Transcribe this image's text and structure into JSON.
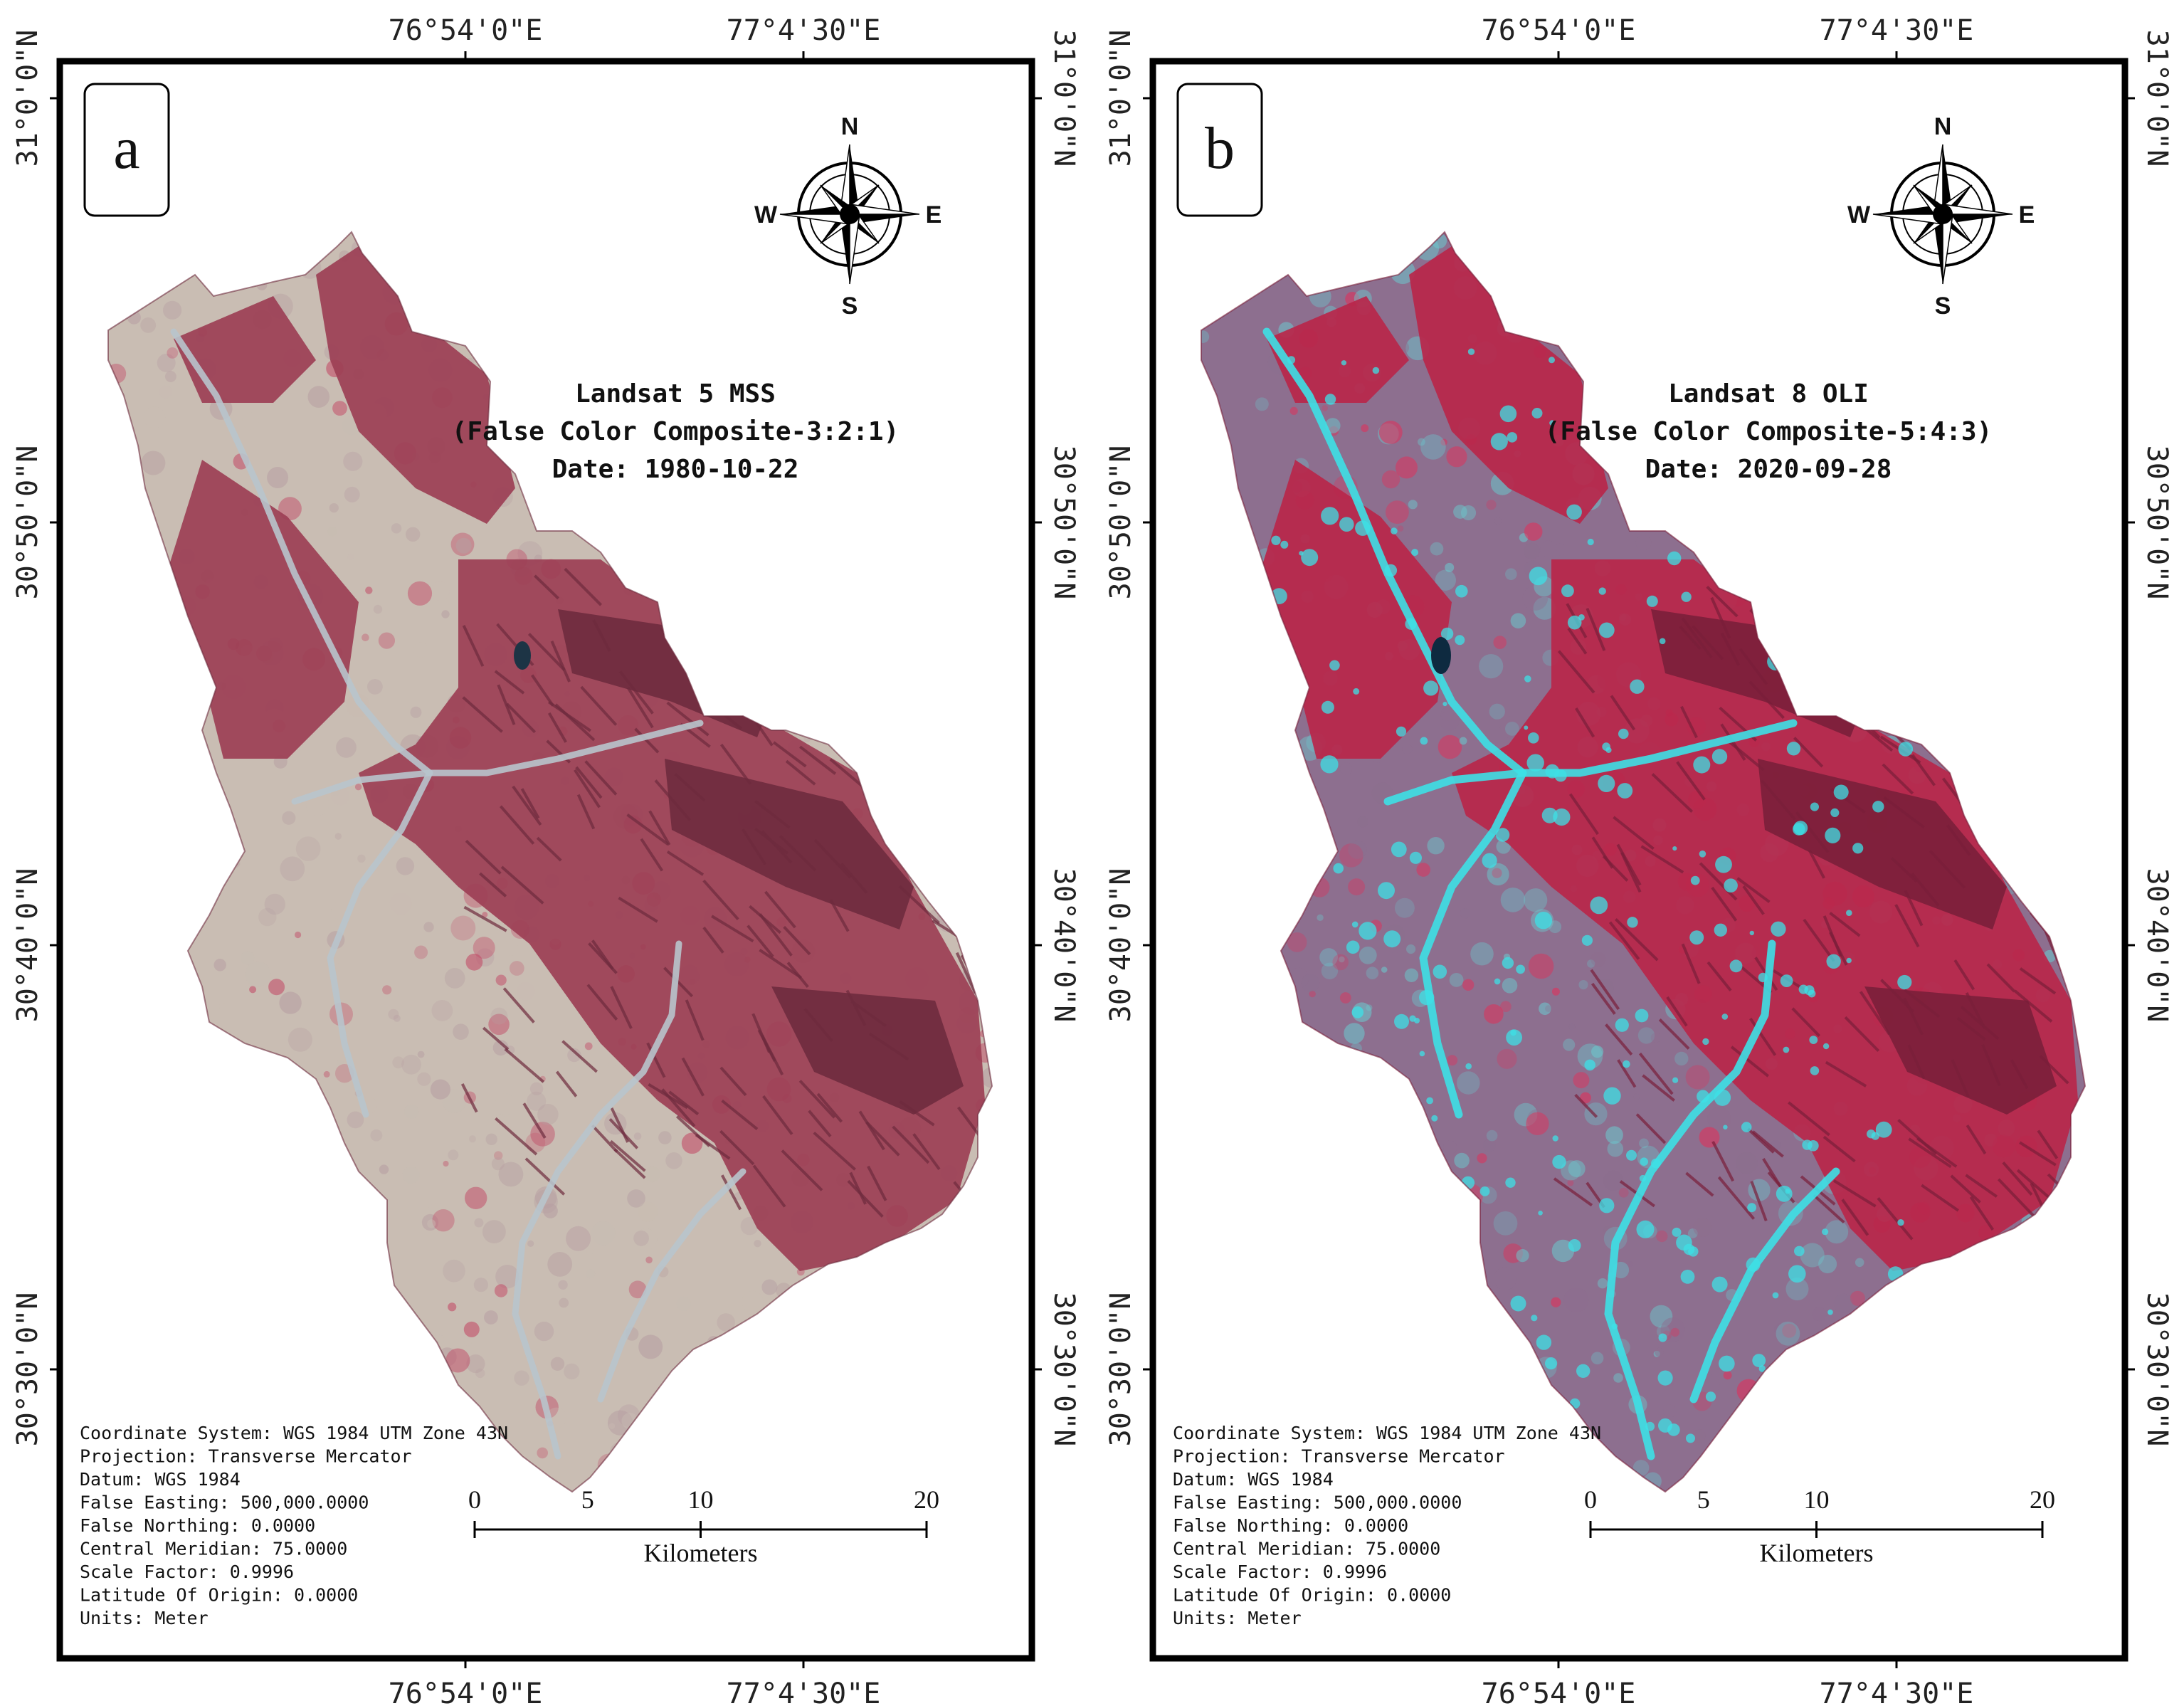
{
  "panels": [
    {
      "letter": "a",
      "title_lines": [
        "Landsat 5 MSS",
        "(False Color Composite-3:2:1)",
        "Date: 1980-10-22"
      ],
      "palette": {
        "mountain": "#9c3f55",
        "mountain_dark": "#6e2b3e",
        "plain": "#c9bdb3",
        "plain_alt": "#b79fa2",
        "river": "#b8c4cc",
        "accent": "#c24a66"
      }
    },
    {
      "letter": "b",
      "title_lines": [
        "Landsat 8 OLI",
        "(False Color Composite-5:4:3)",
        "Date: 2020-09-28"
      ],
      "palette": {
        "mountain": "#b8264a",
        "mountain_dark": "#7a1f3a",
        "plain": "#8d6f8f",
        "plain_alt": "#6cc6cc",
        "river": "#3de0e6",
        "accent": "#e0305a"
      }
    }
  ],
  "longitude_labels": [
    "76°54'0\"E",
    "77°4'30\"E"
  ],
  "latitude_labels": [
    "31°0'0\"N",
    "30°50'0\"N",
    "30°40'0\"N",
    "30°30'0\"N"
  ],
  "compass": {
    "n": "N",
    "s": "S",
    "e": "E",
    "w": "W"
  },
  "metadata_lines": [
    "Coordinate System: WGS 1984 UTM Zone 43N",
    "Projection: Transverse Mercator",
    "Datum: WGS 1984",
    "False Easting: 500,000.0000",
    "False Northing: 0.0000",
    "Central Meridian: 75.0000",
    "Scale Factor: 0.9996",
    "Latitude Of Origin: 0.0000",
    "Units: Meter"
  ],
  "scale_bar": {
    "ticks": [
      "0",
      "5",
      "10",
      "20"
    ],
    "tick_values_km": [
      0,
      5,
      10,
      20
    ],
    "unit": "Kilometers"
  }
}
